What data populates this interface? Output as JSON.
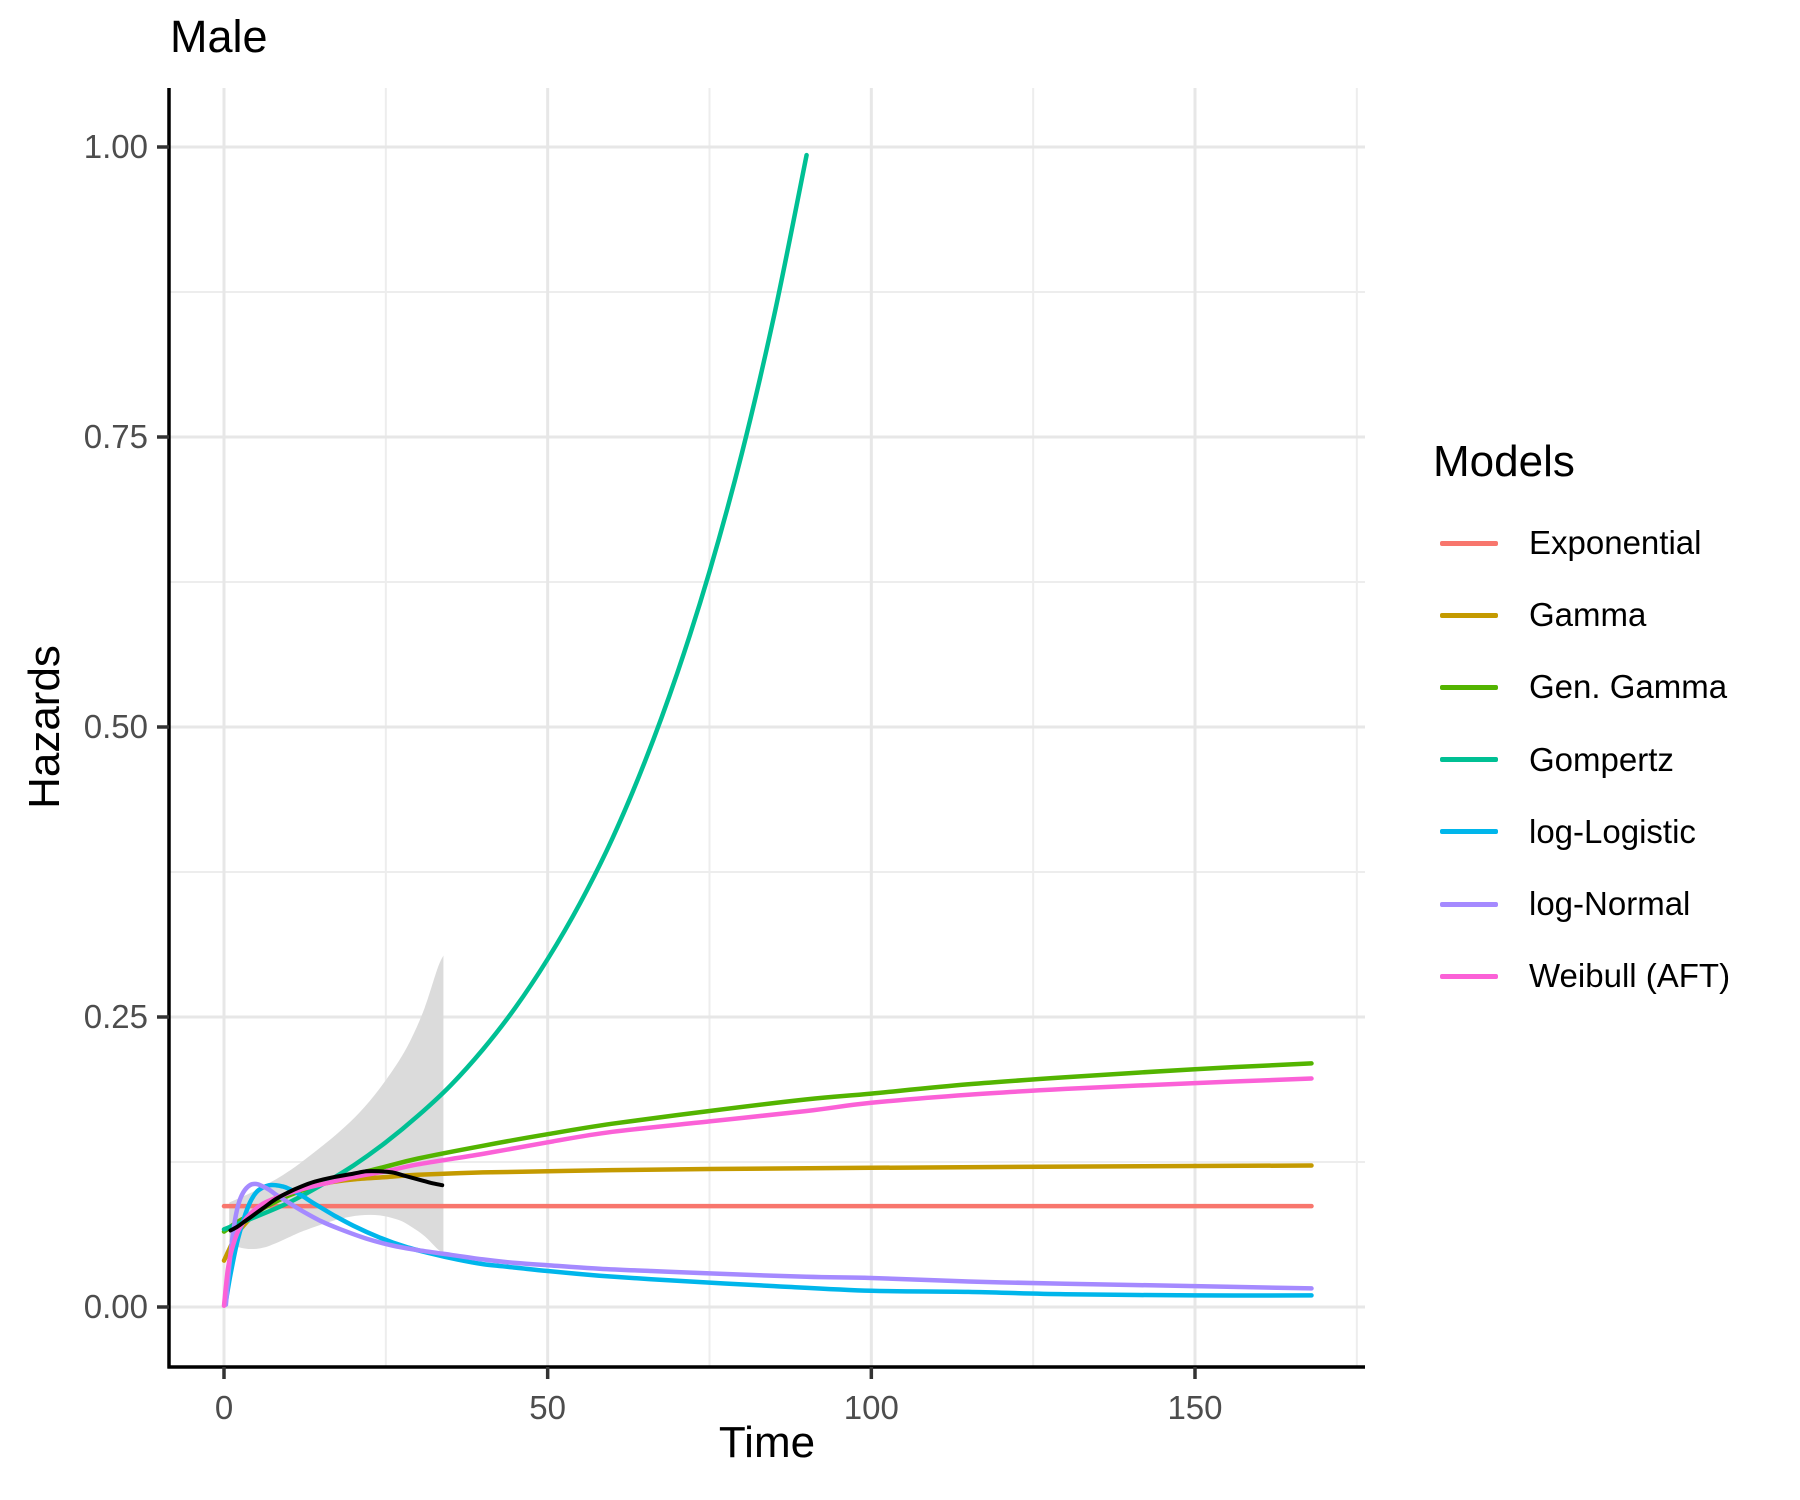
{
  "chart_data": {
    "type": "line",
    "title": "Male",
    "xlabel": "Time",
    "ylabel": "Hazards",
    "xlim": [
      -8.5,
      176.3
    ],
    "ylim": [
      -0.052,
      1.051
    ],
    "grid": true,
    "legend": {
      "title": "Models",
      "position": "right"
    },
    "x_ticks": {
      "values": [
        0,
        50,
        100,
        150
      ],
      "labels": [
        "0",
        "50",
        "100",
        "150"
      ],
      "minor": [
        25,
        75,
        125,
        175
      ]
    },
    "y_ticks": {
      "values": [
        0,
        0.25,
        0.5,
        0.75,
        1.0
      ],
      "labels": [
        "0.00",
        "0.25",
        "0.50",
        "0.75",
        "1.00"
      ],
      "minor": [
        0.125,
        0.375,
        0.625,
        0.875
      ]
    },
    "colors": {
      "grid_major": "#E7E7E7",
      "grid_minor": "#EDEDED",
      "axis": "#000000",
      "tick": "#333333",
      "tick_label": "#4D4D4D"
    },
    "series": [
      {
        "name": "Exponential",
        "slug": "exponential",
        "color": "#F8766D",
        "x": [
          0,
          168
        ],
        "y": [
          0.087,
          0.087
        ]
      },
      {
        "name": "Gamma",
        "slug": "gamma",
        "color": "#C49A00",
        "x": [
          0,
          1,
          2,
          3,
          4,
          6,
          8,
          10,
          12,
          16,
          20,
          25,
          30,
          40,
          50,
          60,
          75,
          100,
          130,
          168
        ],
        "y": [
          0.04,
          0.052,
          0.063,
          0.07,
          0.076,
          0.085,
          0.092,
          0.097,
          0.101,
          0.107,
          0.11,
          0.112,
          0.114,
          0.116,
          0.117,
          0.118,
          0.119,
          0.12,
          0.121,
          0.122
        ]
      },
      {
        "name": "Gen. Gamma",
        "slug": "gen-gamma",
        "color": "#53B400",
        "x": [
          0,
          2,
          5,
          10,
          15,
          20,
          25,
          30,
          40,
          50,
          60,
          75,
          90,
          100,
          115,
          130,
          150,
          168
        ],
        "y": [
          0.065,
          0.073,
          0.082,
          0.096,
          0.106,
          0.114,
          0.121,
          0.128,
          0.139,
          0.149,
          0.158,
          0.169,
          0.179,
          0.184,
          0.192,
          0.198,
          0.205,
          0.21
        ]
      },
      {
        "name": "Gompertz",
        "slug": "gompertz",
        "color": "#00C094",
        "x": [
          0,
          5,
          10,
          15,
          20,
          25,
          30,
          35,
          40,
          45,
          50,
          55,
          60,
          65,
          70,
          75,
          80,
          85,
          90
        ],
        "y": [
          0.067,
          0.078,
          0.09,
          0.105,
          0.122,
          0.142,
          0.165,
          0.191,
          0.222,
          0.258,
          0.3,
          0.348,
          0.404,
          0.47,
          0.546,
          0.634,
          0.736,
          0.855,
          0.993
        ]
      },
      {
        "name": "log-Logistic",
        "slug": "log-logistic",
        "color": "#00B6EB",
        "x": [
          0.3,
          1,
          2,
          3,
          4,
          5,
          6,
          7,
          8,
          9,
          10,
          12,
          14,
          17,
          20,
          24,
          28,
          32,
          36,
          40,
          45,
          50,
          58,
          66,
          75,
          85,
          100,
          115,
          130,
          150,
          168
        ],
        "y": [
          0.005,
          0.028,
          0.055,
          0.075,
          0.09,
          0.099,
          0.103,
          0.105,
          0.105,
          0.104,
          0.102,
          0.096,
          0.089,
          0.079,
          0.07,
          0.06,
          0.052,
          0.046,
          0.041,
          0.037,
          0.034,
          0.031,
          0.027,
          0.024,
          0.021,
          0.018,
          0.014,
          0.013,
          0.011,
          0.01,
          0.01
        ]
      },
      {
        "name": "log-Normal",
        "slug": "log-normal",
        "color": "#A58AFF",
        "x": [
          0.3,
          0.8,
          1.5,
          2.2,
          3,
          4,
          5,
          6,
          7,
          8,
          10,
          12,
          15,
          18,
          22,
          26,
          30,
          35,
          40,
          45,
          50,
          58,
          66,
          75,
          90,
          100,
          115,
          130,
          150,
          168
        ],
        "y": [
          0.002,
          0.035,
          0.068,
          0.088,
          0.099,
          0.105,
          0.106,
          0.104,
          0.101,
          0.097,
          0.09,
          0.083,
          0.074,
          0.067,
          0.059,
          0.053,
          0.049,
          0.045,
          0.041,
          0.038,
          0.036,
          0.033,
          0.031,
          0.029,
          0.026,
          0.025,
          0.022,
          0.02,
          0.018,
          0.016
        ]
      },
      {
        "name": "Weibull (AFT)",
        "slug": "weibull-aft",
        "color": "#FB61D7",
        "x": [
          0,
          0.5,
          1,
          2,
          3,
          4,
          6,
          8,
          10,
          13,
          16,
          20,
          25,
          30,
          40,
          50,
          60,
          75,
          90,
          100,
          115,
          130,
          150,
          168
        ],
        "y": [
          0.001,
          0.028,
          0.045,
          0.063,
          0.073,
          0.08,
          0.089,
          0.094,
          0.098,
          0.103,
          0.107,
          0.112,
          0.117,
          0.123,
          0.132,
          0.142,
          0.151,
          0.16,
          0.169,
          0.176,
          0.183,
          0.188,
          0.193,
          0.197
        ]
      }
    ],
    "observed": {
      "name": "observed-hazard",
      "color": "#000000",
      "x": [
        1,
        2,
        3,
        4,
        6,
        8,
        10,
        12,
        14,
        17,
        20,
        22,
        24,
        26,
        28,
        30,
        32,
        33.7
      ],
      "y": [
        0.066,
        0.069,
        0.073,
        0.077,
        0.085,
        0.093,
        0.099,
        0.104,
        0.108,
        0.112,
        0.115,
        0.117,
        0.117,
        0.116,
        0.113,
        0.11,
        0.107,
        0.105
      ]
    },
    "confidence_band": {
      "color": "#DBDBDB",
      "opacity": 1,
      "x": [
        0.8,
        2,
        4,
        6,
        8,
        10,
        12,
        15,
        18,
        21,
        24,
        27,
        29,
        31,
        33,
        33.9
      ],
      "upper": [
        0.09,
        0.093,
        0.098,
        0.104,
        0.11,
        0.117,
        0.125,
        0.138,
        0.152,
        0.168,
        0.188,
        0.212,
        0.232,
        0.258,
        0.292,
        0.303
      ],
      "lower": [
        0.056,
        0.052,
        0.05,
        0.051,
        0.055,
        0.06,
        0.065,
        0.071,
        0.076,
        0.079,
        0.079,
        0.075,
        0.069,
        0.061,
        0.05,
        0.046
      ]
    }
  }
}
